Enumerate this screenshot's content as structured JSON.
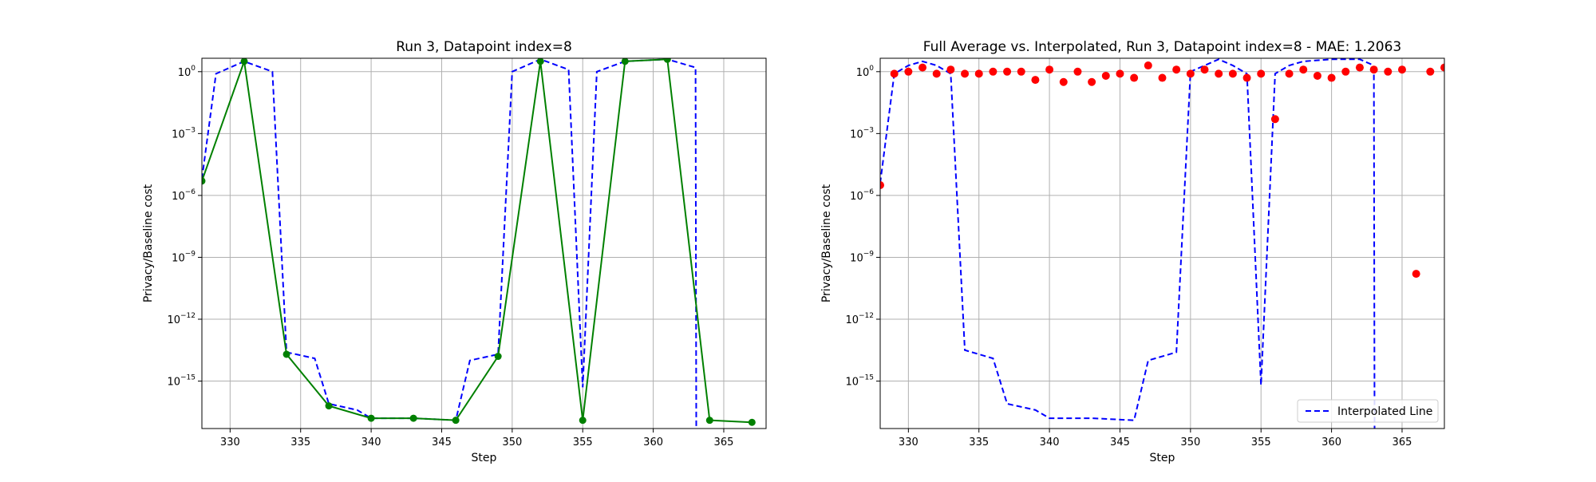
{
  "chart_data": [
    {
      "type": "line",
      "title": "Run 3, Datapoint index=8",
      "xlabel": "Step",
      "ylabel": "Privacy/Baseline cost",
      "yscale": "log",
      "xlim": [
        328,
        368
      ],
      "ylim_log10": [
        -17.3,
        0.65
      ],
      "grid": true,
      "x_ticks": [
        330,
        335,
        340,
        345,
        350,
        355,
        360,
        365
      ],
      "y_ticks_log10": [
        0,
        -3,
        -6,
        -9,
        -12,
        -15
      ],
      "y_tick_base": "10",
      "y_tick_exponents": [
        "0",
        "−3",
        "−6",
        "−9",
        "−12",
        "−15"
      ],
      "series": [
        {
          "style": "dashed",
          "color": "#0000ff",
          "points_log10": [
            [
              328,
              -5.2
            ],
            [
              329,
              -0.1
            ],
            [
              331,
              0.5
            ],
            [
              333,
              0.0
            ],
            [
              334,
              -13.6
            ],
            [
              336,
              -13.9
            ],
            [
              337,
              -16.1
            ],
            [
              339,
              -16.4
            ],
            [
              340,
              -16.8
            ],
            [
              343,
              -16.8
            ],
            [
              346,
              -16.9
            ],
            [
              347,
              -14.0
            ],
            [
              349,
              -13.7
            ],
            [
              350,
              0.0
            ],
            [
              352,
              0.6
            ],
            [
              354,
              0.1
            ],
            [
              355,
              -15.3
            ],
            [
              356,
              0.0
            ],
            [
              358,
              0.5
            ],
            [
              361,
              0.6
            ],
            [
              363,
              0.2
            ],
            [
              363.05,
              -17.3
            ]
          ]
        },
        {
          "style": "solid-markers",
          "color": "#008000",
          "points_log10": [
            [
              328,
              -5.3
            ],
            [
              331,
              0.5
            ],
            [
              334,
              -13.7
            ],
            [
              337,
              -16.2
            ],
            [
              340,
              -16.8
            ],
            [
              343,
              -16.8
            ],
            [
              346,
              -16.9
            ],
            [
              349,
              -13.8
            ],
            [
              352,
              0.5
            ],
            [
              355,
              -16.9
            ],
            [
              358,
              0.5
            ],
            [
              361,
              0.6
            ],
            [
              364,
              -16.9
            ],
            [
              367,
              -17.0
            ]
          ]
        }
      ]
    },
    {
      "type": "line",
      "title": "Full Average vs. Interpolated, Run 3, Datapoint index=8 - MAE: 1.2063",
      "xlabel": "Step",
      "ylabel": "Privacy/Baseline cost",
      "yscale": "log",
      "xlim": [
        328,
        368
      ],
      "ylim_log10": [
        -17.3,
        0.65
      ],
      "grid": true,
      "legend": "lower-right",
      "x_ticks": [
        330,
        335,
        340,
        345,
        350,
        355,
        360,
        365
      ],
      "y_ticks_log10": [
        0,
        -3,
        -6,
        -9,
        -12,
        -15
      ],
      "y_tick_base": "10",
      "y_tick_exponents": [
        "0",
        "−3",
        "−6",
        "−9",
        "−12",
        "−15"
      ],
      "series": [
        {
          "name": "Interpolated Line",
          "style": "dashed",
          "color": "#0000ff",
          "points_log10": [
            [
              328,
              -5.4
            ],
            [
              329,
              -0.1
            ],
            [
              330,
              0.3
            ],
            [
              331,
              0.5
            ],
            [
              332,
              0.3
            ],
            [
              333,
              -0.1
            ],
            [
              334,
              -13.5
            ],
            [
              335,
              -13.7
            ],
            [
              336,
              -13.9
            ],
            [
              337,
              -16.1
            ],
            [
              339,
              -16.4
            ],
            [
              340,
              -16.8
            ],
            [
              343,
              -16.8
            ],
            [
              346,
              -16.9
            ],
            [
              347,
              -14.0
            ],
            [
              349,
              -13.6
            ],
            [
              350,
              0.0
            ],
            [
              351,
              0.3
            ],
            [
              352,
              0.6
            ],
            [
              353,
              0.3
            ],
            [
              354,
              -0.1
            ],
            [
              355,
              -15.2
            ],
            [
              356,
              -0.1
            ],
            [
              357,
              0.3
            ],
            [
              358,
              0.5
            ],
            [
              360,
              0.6
            ],
            [
              362,
              0.6
            ],
            [
              363,
              0.3
            ],
            [
              363.05,
              -17.3
            ]
          ]
        },
        {
          "style": "markers",
          "color": "#ff0000",
          "points_log10": [
            [
              328,
              -5.5
            ],
            [
              329,
              -0.1
            ],
            [
              330,
              0.0
            ],
            [
              331,
              0.2
            ],
            [
              332,
              -0.1
            ],
            [
              333,
              0.1
            ],
            [
              334,
              -0.1
            ],
            [
              335,
              -0.1
            ],
            [
              336,
              0.0
            ],
            [
              337,
              0.0
            ],
            [
              338,
              0.0
            ],
            [
              339,
              -0.4
            ],
            [
              340,
              0.1
            ],
            [
              341,
              -0.5
            ],
            [
              342,
              0.0
            ],
            [
              343,
              -0.5
            ],
            [
              344,
              -0.2
            ],
            [
              345,
              -0.1
            ],
            [
              346,
              -0.3
            ],
            [
              347,
              0.3
            ],
            [
              348,
              -0.3
            ],
            [
              349,
              0.1
            ],
            [
              350,
              -0.1
            ],
            [
              351,
              0.1
            ],
            [
              352,
              -0.1
            ],
            [
              353,
              -0.1
            ],
            [
              354,
              -0.3
            ],
            [
              355,
              -0.1
            ],
            [
              356,
              -2.3
            ],
            [
              357,
              -0.1
            ],
            [
              358,
              0.1
            ],
            [
              359,
              -0.2
            ],
            [
              360,
              -0.3
            ],
            [
              361,
              0.0
            ],
            [
              362,
              0.2
            ],
            [
              363,
              0.1
            ],
            [
              364,
              0.0
            ],
            [
              365,
              0.1
            ],
            [
              366,
              -9.8
            ],
            [
              367,
              0.0
            ],
            [
              368,
              0.2
            ]
          ]
        }
      ]
    }
  ]
}
